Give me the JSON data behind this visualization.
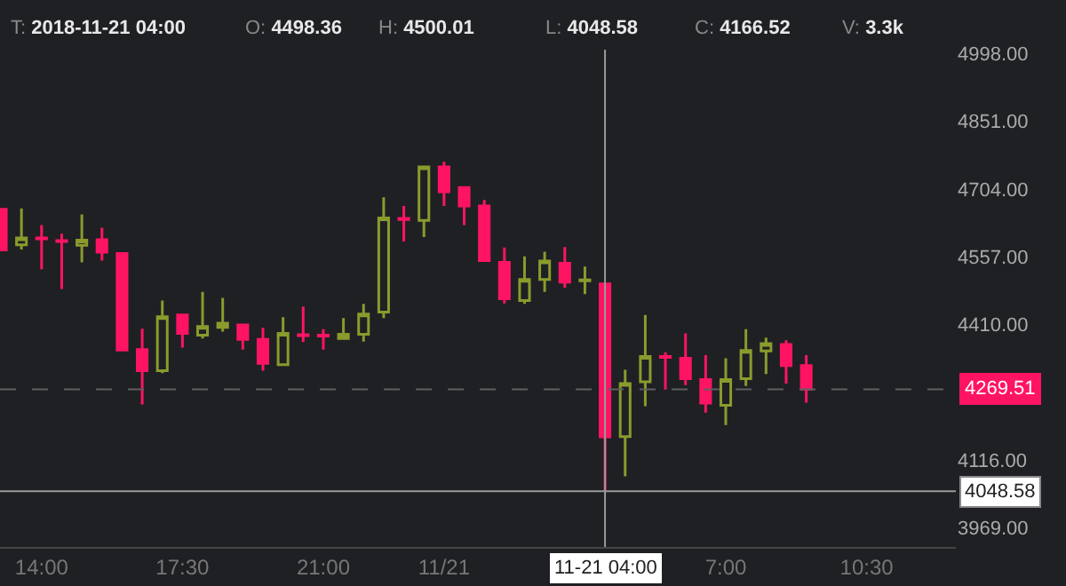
{
  "chart_data": {
    "type": "candlestick",
    "x": [
      "2018-11-20T13:00",
      "2018-11-20T13:30",
      "2018-11-20T14:00",
      "2018-11-20T14:30",
      "2018-11-20T15:00",
      "2018-11-20T15:30",
      "2018-11-20T16:00",
      "2018-11-20T16:30",
      "2018-11-20T17:00",
      "2018-11-20T17:30",
      "2018-11-20T18:00",
      "2018-11-20T18:30",
      "2018-11-20T19:00",
      "2018-11-20T19:30",
      "2018-11-20T20:00",
      "2018-11-20T20:30",
      "2018-11-20T21:00",
      "2018-11-20T21:30",
      "2018-11-20T22:00",
      "2018-11-20T22:30",
      "2018-11-20T23:00",
      "2018-11-20T23:30",
      "2018-11-21T00:00",
      "2018-11-21T00:30",
      "2018-11-21T01:00",
      "2018-11-21T01:30",
      "2018-11-21T02:00",
      "2018-11-21T02:30",
      "2018-11-21T03:00",
      "2018-11-21T03:30",
      "2018-11-21T04:00",
      "2018-11-21T04:30",
      "2018-11-21T05:00",
      "2018-11-21T05:30",
      "2018-11-21T06:00",
      "2018-11-21T06:30",
      "2018-11-21T07:00",
      "2018-11-21T07:30",
      "2018-11-21T08:00",
      "2018-11-21T08:30",
      "2018-11-21T09:00"
    ],
    "ohlc": [
      [
        4660,
        4660,
        4572,
        4572
      ],
      [
        4583,
        4662,
        4573,
        4598
      ],
      [
        4598,
        4626,
        4530,
        4596
      ],
      [
        4592,
        4607,
        4487,
        4590
      ],
      [
        4582,
        4649,
        4545,
        4593
      ],
      [
        4594,
        4620,
        4549,
        4567
      ],
      [
        4564,
        4566,
        4353,
        4355
      ],
      [
        4356,
        4401,
        4237,
        4310
      ],
      [
        4310,
        4462,
        4305,
        4427
      ],
      [
        4431,
        4431,
        4360,
        4391
      ],
      [
        4387,
        4481,
        4380,
        4406
      ],
      [
        4404,
        4468,
        4395,
        4413
      ],
      [
        4409,
        4409,
        4356,
        4378
      ],
      [
        4378,
        4403,
        4310,
        4326
      ],
      [
        4323,
        4426,
        4321,
        4391
      ],
      [
        4388,
        4449,
        4372,
        4386
      ],
      [
        4387,
        4400,
        4356,
        4385
      ],
      [
        4380,
        4424,
        4377,
        4389
      ],
      [
        4389,
        4455,
        4373,
        4433
      ],
      [
        4437,
        4686,
        4424,
        4641
      ],
      [
        4640,
        4667,
        4590,
        4638
      ],
      [
        4636,
        4754,
        4600,
        4752
      ],
      [
        4752,
        4763,
        4667,
        4698
      ],
      [
        4707,
        4707,
        4626,
        4667
      ],
      [
        4667,
        4680,
        4549,
        4549
      ],
      [
        4545,
        4577,
        4456,
        4466
      ],
      [
        4462,
        4558,
        4455,
        4508
      ],
      [
        4508,
        4568,
        4481,
        4548
      ],
      [
        4543,
        4578,
        4490,
        4502
      ],
      [
        4505,
        4536,
        4476,
        4507
      ],
      [
        4498.36,
        4500.01,
        4048.58,
        4166.52
      ],
      [
        4167,
        4312,
        4081,
        4282
      ],
      [
        4286,
        4431,
        4233,
        4341
      ],
      [
        4341,
        4350,
        4269,
        4339
      ],
      [
        4337,
        4391,
        4279,
        4293
      ],
      [
        4291,
        4344,
        4219,
        4240
      ],
      [
        4235,
        4337,
        4192,
        4291
      ],
      [
        4293,
        4400,
        4277,
        4354
      ],
      [
        4353,
        4382,
        4303,
        4369
      ],
      [
        4367,
        4376,
        4282,
        4321
      ],
      [
        4321,
        4344,
        4241,
        4269.51
      ]
    ],
    "colors": [
      "#ff1463",
      "#8a9b2c",
      "#ff1463",
      "#ff1463",
      "#8a9b2c",
      "#ff1463",
      "#ff1463",
      "#ff1463",
      "#8a9b2c",
      "#ff1463",
      "#8a9b2c",
      "#8a9b2c",
      "#ff1463",
      "#ff1463",
      "#8a9b2c",
      "#ff1463",
      "#ff1463",
      "#8a9b2c",
      "#8a9b2c",
      "#8a9b2c",
      "#ff1463",
      "#8a9b2c",
      "#ff1463",
      "#ff1463",
      "#ff1463",
      "#ff1463",
      "#8a9b2c",
      "#8a9b2c",
      "#ff1463",
      "#8a9b2c",
      "#ff1463",
      "#8a9b2c",
      "#8a9b2c",
      "#ff1463",
      "#ff1463",
      "#ff1463",
      "#8a9b2c",
      "#8a9b2c",
      "#8a9b2c",
      "#ff1463",
      "#ff1463"
    ],
    "xlim": [
      "2018-11-20T12:58",
      "2018-11-21T12:43"
    ],
    "xticks": [
      {
        "value": "2018-11-20T14:00",
        "label": "14:00"
      },
      {
        "value": "2018-11-20T17:30",
        "label": "17:30"
      },
      {
        "value": "2018-11-20T21:00",
        "label": "21:00"
      },
      {
        "value": "2018-11-21T00:00",
        "label": "11/21"
      },
      {
        "value": "2018-11-21T07:00",
        "label": "7:00"
      },
      {
        "value": "2018-11-21T10:30",
        "label": "10:30"
      }
    ],
    "ylim": [
      3928,
      5006
    ],
    "yticks": [
      {
        "value": 3969,
        "label": "3969.00"
      },
      {
        "value": 4116,
        "label": "4116.00"
      },
      {
        "value": 4410,
        "label": "4410.00"
      },
      {
        "value": 4557,
        "label": "4557.00"
      },
      {
        "value": 4704,
        "label": "4704.00"
      },
      {
        "value": 4851,
        "label": "4851.00"
      },
      {
        "value": 4998,
        "label": "4998.00"
      }
    ],
    "ref_lines": [
      {
        "axis": "y",
        "value": 4269.51,
        "label": "4269.51",
        "color": "#5f5f5f",
        "line_style": "dashed"
      },
      {
        "axis": "y",
        "value": 4048.58,
        "label": "4048.58",
        "color": "#9a9a9a",
        "line_style": "solid"
      },
      {
        "axis": "x",
        "value": "2018-11-21T04:00",
        "label": "11-21 04:00",
        "color": "#9a9a9a",
        "line_style": "solid"
      }
    ],
    "annotations": [
      "T: 2018-11-21 04:00",
      "O: 4498.36",
      "H: 4500.01",
      "L: 4048.58",
      "C: 4166.52",
      "V: 3.3k"
    ],
    "grid": false,
    "legend": false
  }
}
